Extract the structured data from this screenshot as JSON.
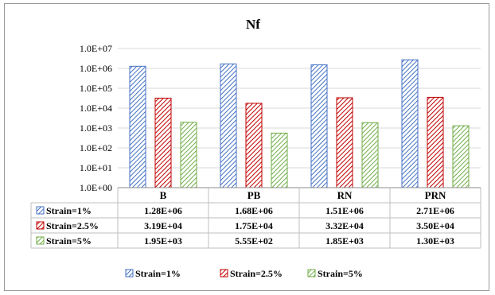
{
  "chart_data": {
    "type": "bar",
    "title": "Nf",
    "y_scale": "log",
    "ylim": [
      1,
      10000000
    ],
    "y_ticks": [
      "1.0E+00",
      "1.0E+01",
      "1.0E+02",
      "1.0E+03",
      "1.0E+04",
      "1.0E+05",
      "1.0E+06",
      "1.0E+07"
    ],
    "gridlines": true,
    "legend_position": "bottom",
    "data_table": true,
    "categories": [
      "B",
      "PB",
      "RN",
      "PRN"
    ],
    "series": [
      {
        "name": "Strain=1%",
        "color": "#4472c4",
        "values": [
          1280000,
          1680000,
          1510000,
          2710000
        ],
        "labels": [
          "1.28E+06",
          "1.68E+06",
          "1.51E+06",
          "2.71E+06"
        ]
      },
      {
        "name": "Strain=2.5%",
        "color": "#c00000",
        "values": [
          31900,
          17500,
          33200,
          35000
        ],
        "labels": [
          "3.19E+04",
          "1.75E+04",
          "3.32E+04",
          "3.50E+04"
        ]
      },
      {
        "name": "Strain=5%",
        "color": "#70ad47",
        "values": [
          1950,
          555,
          1850,
          1300
        ],
        "labels": [
          "1.95E+03",
          "5.55E+02",
          "1.85E+03",
          "1.30E+03"
        ]
      }
    ]
  }
}
